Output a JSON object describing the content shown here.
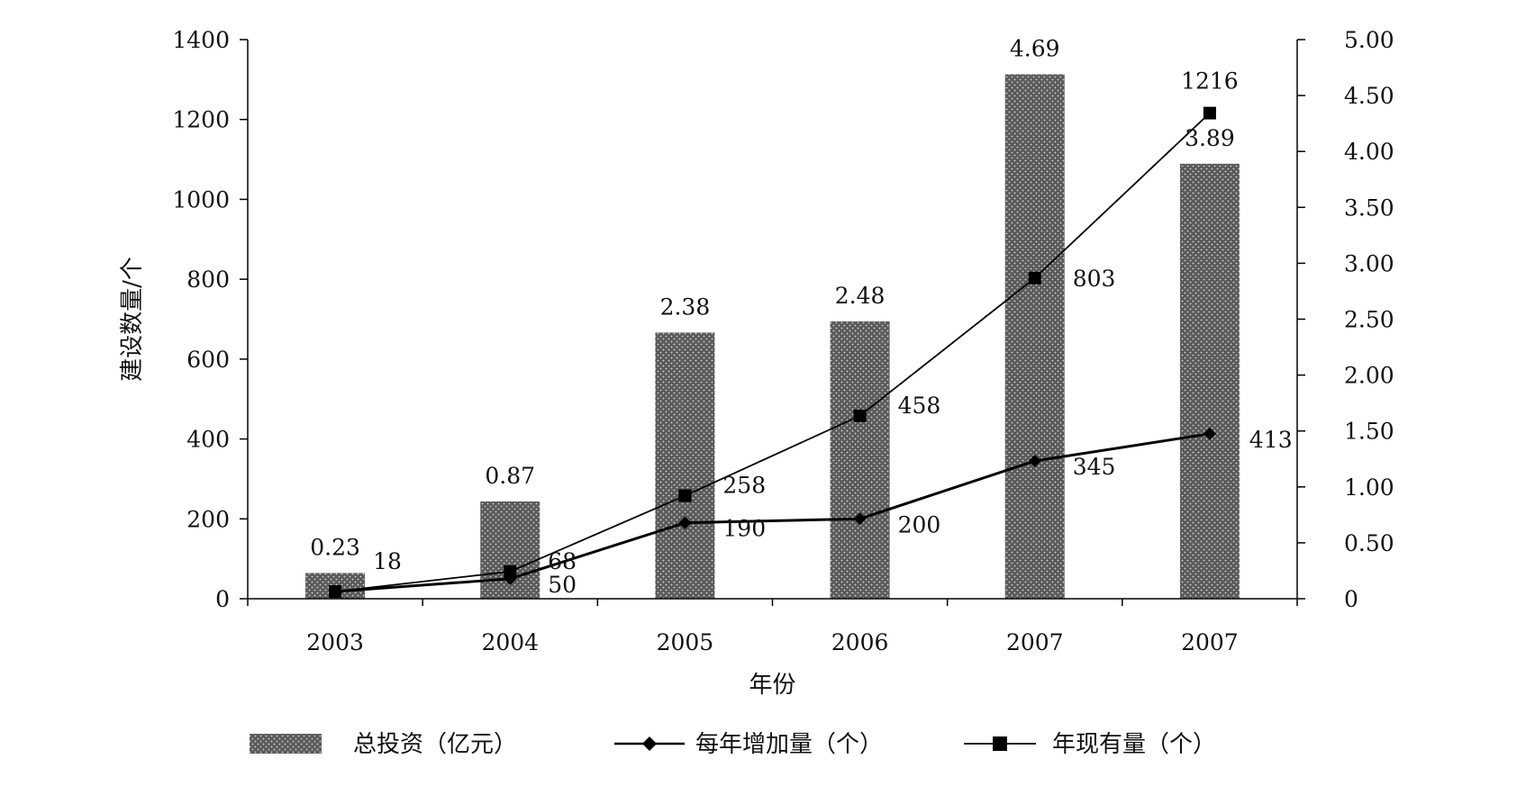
{
  "chart_data": {
    "type": "bar",
    "categories": [
      "2003",
      "2004",
      "2005",
      "2006",
      "2007",
      "2007"
    ],
    "xlabel": "年份",
    "ylabel": "建设数量/个",
    "ylim": [
      0,
      1400
    ],
    "y_ticks": [
      "0",
      "200",
      "400",
      "600",
      "800",
      "1000",
      "1200",
      "1400"
    ],
    "y2lim": [
      0,
      5.0
    ],
    "y2_ticks": [
      "0",
      "0.50",
      "1.00",
      "1.50",
      "2.00",
      "2.50",
      "3.00",
      "3.50",
      "4.00",
      "4.50",
      "5.00"
    ],
    "grid": false,
    "legend_position": "bottom",
    "series": [
      {
        "name": "总投资（亿元）",
        "type": "bar",
        "axis": "right",
        "values": [
          0.23,
          0.87,
          2.38,
          2.48,
          4.69,
          3.89
        ],
        "labels": [
          "0.23",
          "0.87",
          "2.38",
          "2.48",
          "4.69",
          "3.89"
        ]
      },
      {
        "name": "每年增加量（个）",
        "type": "line",
        "marker": "diamond",
        "axis": "left",
        "values": [
          18,
          50,
          190,
          200,
          345,
          413
        ],
        "labels": [
          "18",
          "50",
          "190",
          "200",
          "345",
          "413"
        ]
      },
      {
        "name": "年现有量（个）",
        "type": "line",
        "marker": "square",
        "axis": "left",
        "values": [
          18,
          68,
          258,
          458,
          803,
          1216
        ],
        "labels": [
          "",
          "68",
          "258",
          "458",
          "803",
          "1216"
        ]
      }
    ],
    "colors": {
      "bar": "#5a5a5a",
      "bar_dot": "#d8d8d8",
      "line": "#000000",
      "axis": "#000000"
    }
  }
}
